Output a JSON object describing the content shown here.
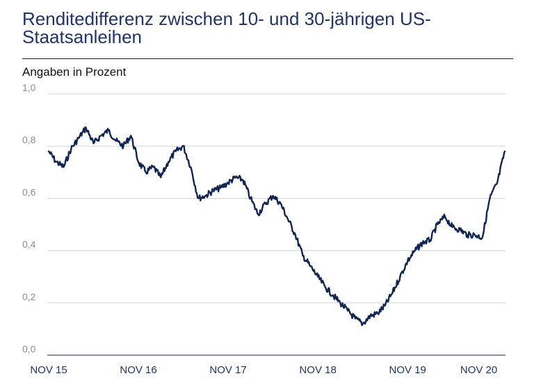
{
  "chart_data": {
    "type": "line",
    "title": "Renditedifferenz zwischen 10- und 30-jährigen US-Staatsanleihen",
    "subtitle": "Angaben in Prozent",
    "ylim": [
      0,
      1.0
    ],
    "yticks": [
      "1,0",
      "0,8",
      "0,6",
      "0,4",
      "0,2",
      "0,0"
    ],
    "ytick_values": [
      1.0,
      0.8,
      0.6,
      0.4,
      0.2,
      0.0
    ],
    "xlim": [
      "2015-11",
      "2020-12"
    ],
    "xticks": [
      "NOV 15",
      "NOV 16",
      "NOV 17",
      "NOV 18",
      "NOV 19",
      "NOV 20"
    ],
    "xtick_dates": [
      "2015-11",
      "2016-11",
      "2017-11",
      "2018-11",
      "2019-11",
      "2020-11"
    ],
    "grid": "horizontal",
    "line_color": "#0f2557",
    "series": [
      {
        "x": [
          "2015-11",
          "2015-12",
          "2016-01",
          "2016-02",
          "2016-03",
          "2016-04",
          "2016-05",
          "2016-06",
          "2016-07",
          "2016-08",
          "2016-09",
          "2016-10",
          "2016-11",
          "2016-12",
          "2017-01",
          "2017-02",
          "2017-03",
          "2017-04",
          "2017-05",
          "2017-06",
          "2017-07",
          "2017-08",
          "2017-09",
          "2017-10",
          "2017-11",
          "2017-12",
          "2018-01",
          "2018-02",
          "2018-03",
          "2018-04",
          "2018-05",
          "2018-06",
          "2018-07",
          "2018-08",
          "2018-09",
          "2018-10",
          "2018-11",
          "2018-12",
          "2019-01",
          "2019-02",
          "2019-03",
          "2019-04",
          "2019-05",
          "2019-06",
          "2019-07",
          "2019-08",
          "2019-09",
          "2019-10",
          "2019-11",
          "2019-12",
          "2020-01",
          "2020-02",
          "2020-03",
          "2020-04",
          "2020-05",
          "2020-06",
          "2020-07",
          "2020-08",
          "2020-09",
          "2020-10",
          "2020-11",
          "2020-12"
        ],
        "y": [
          0.78,
          0.74,
          0.72,
          0.79,
          0.83,
          0.87,
          0.81,
          0.84,
          0.86,
          0.82,
          0.8,
          0.84,
          0.74,
          0.7,
          0.72,
          0.68,
          0.74,
          0.78,
          0.8,
          0.72,
          0.6,
          0.61,
          0.63,
          0.64,
          0.66,
          0.68,
          0.67,
          0.6,
          0.54,
          0.58,
          0.61,
          0.58,
          0.52,
          0.46,
          0.38,
          0.34,
          0.3,
          0.26,
          0.23,
          0.2,
          0.17,
          0.14,
          0.12,
          0.15,
          0.16,
          0.19,
          0.24,
          0.3,
          0.36,
          0.4,
          0.43,
          0.44,
          0.5,
          0.53,
          0.49,
          0.48,
          0.46,
          0.46,
          0.45,
          0.6,
          0.66,
          0.78
        ]
      }
    ]
  }
}
